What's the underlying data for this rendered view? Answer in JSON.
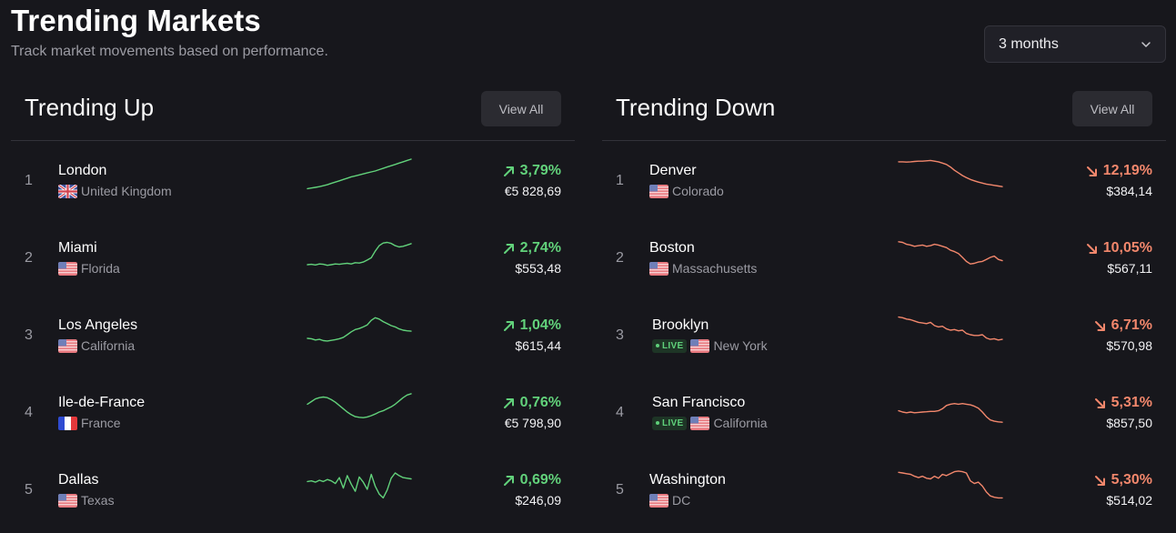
{
  "header": {
    "title": "Trending Markets",
    "subtitle": "Track market movements based on performance.",
    "period": "3 months"
  },
  "colors": {
    "positive": "#62d27b",
    "negative": "#f2876c"
  },
  "up": {
    "title": "Trending Up",
    "view_all": "View All",
    "rows": [
      {
        "rank": "1",
        "city": "London",
        "region": "United Kingdom",
        "flag": "gb-flag-icon",
        "live": false,
        "live_label": "",
        "change": "3,79%",
        "price": "€5 828,69",
        "spark": [
          10,
          12,
          14,
          16,
          19,
          22,
          26,
          30,
          34,
          38,
          42,
          46,
          49,
          52,
          55,
          58,
          61,
          64,
          68,
          72,
          76,
          80,
          84,
          88,
          92,
          96,
          100
        ]
      },
      {
        "rank": "2",
        "city": "Miami",
        "region": "Florida",
        "flag": "us-flag-icon",
        "live": false,
        "live_label": "",
        "change": "2,74%",
        "price": "$553,48",
        "spark": [
          14,
          15,
          13,
          16,
          15,
          12,
          14,
          16,
          15,
          17,
          18,
          16,
          20,
          19,
          22,
          28,
          35,
          55,
          72,
          80,
          82,
          79,
          72,
          68,
          70,
          74,
          78
        ]
      },
      {
        "rank": "3",
        "city": "Los Angeles",
        "region": "California",
        "flag": "us-flag-icon",
        "live": false,
        "live_label": "",
        "change": "1,04%",
        "price": "$615,44",
        "spark": [
          25,
          24,
          20,
          22,
          18,
          17,
          19,
          21,
          24,
          28,
          36,
          45,
          52,
          55,
          60,
          66,
          80,
          88,
          84,
          76,
          70,
          64,
          60,
          54,
          50,
          48,
          47
        ]
      },
      {
        "rank": "4",
        "city": "Ile-de-France",
        "region": "France",
        "flag": "fr-flag-icon",
        "live": false,
        "live_label": "",
        "change": "0,76%",
        "price": "€5 798,90",
        "spark": [
          60,
          68,
          76,
          80,
          82,
          80,
          74,
          66,
          56,
          46,
          36,
          28,
          22,
          20,
          19,
          21,
          25,
          30,
          36,
          40,
          46,
          52,
          60,
          70,
          80,
          88,
          92
        ]
      },
      {
        "rank": "5",
        "city": "Dallas",
        "region": "Texas",
        "flag": "us-flag-icon",
        "live": false,
        "live_label": "",
        "change": "0,69%",
        "price": "$246,09",
        "spark": [
          60,
          62,
          58,
          64,
          60,
          66,
          62,
          54,
          72,
          40,
          78,
          52,
          30,
          74,
          58,
          36,
          82,
          46,
          22,
          10,
          34,
          70,
          86,
          78,
          72,
          70,
          68
        ]
      }
    ]
  },
  "down": {
    "title": "Trending Down",
    "view_all": "View All",
    "rows": [
      {
        "rank": "1",
        "city": "Denver",
        "region": "Colorado",
        "flag": "us-flag-icon",
        "live": false,
        "live_label": "",
        "change": "12,19%",
        "price": "$384,14",
        "spark": [
          92,
          92,
          91,
          92,
          93,
          94,
          94,
          95,
          96,
          94,
          92,
          88,
          84,
          76,
          66,
          58,
          50,
          44,
          38,
          34,
          30,
          27,
          24,
          22,
          20,
          18,
          16
        ]
      },
      {
        "rank": "2",
        "city": "Boston",
        "region": "Massachusetts",
        "flag": "us-flag-icon",
        "live": false,
        "live_label": "",
        "change": "10,05%",
        "price": "$567,11",
        "spark": [
          84,
          82,
          76,
          74,
          70,
          72,
          74,
          70,
          72,
          76,
          74,
          70,
          66,
          58,
          54,
          48,
          36,
          24,
          16,
          18,
          22,
          24,
          30,
          36,
          40,
          30,
          26
        ]
      },
      {
        "rank": "3",
        "city": "Brooklyn",
        "region": "New York",
        "flag": "us-flag-icon",
        "live": true,
        "live_label": "LIVE",
        "change": "6,71%",
        "price": "$570,98",
        "spark": [
          90,
          88,
          84,
          82,
          78,
          74,
          72,
          70,
          74,
          64,
          60,
          62,
          54,
          50,
          52,
          48,
          50,
          40,
          36,
          34,
          34,
          36,
          26,
          22,
          24,
          20,
          22
        ]
      },
      {
        "rank": "4",
        "city": "San Francisco",
        "region": "California",
        "flag": "us-flag-icon",
        "live": true,
        "live_label": "LIVE",
        "change": "5,31%",
        "price": "$857,50",
        "spark": [
          40,
          36,
          34,
          36,
          34,
          35,
          36,
          37,
          38,
          38,
          40,
          46,
          56,
          60,
          62,
          60,
          62,
          60,
          58,
          54,
          48,
          36,
          22,
          12,
          8,
          6,
          5
        ]
      },
      {
        "rank": "5",
        "city": "Washington",
        "region": "DC",
        "flag": "us-flag-icon",
        "live": false,
        "live_label": "",
        "change": "5,30%",
        "price": "$514,02",
        "spark": [
          88,
          86,
          84,
          82,
          76,
          72,
          76,
          70,
          68,
          76,
          70,
          82,
          78,
          84,
          90,
          92,
          90,
          86,
          62,
          54,
          58,
          46,
          28,
          16,
          12,
          10,
          10
        ]
      }
    ]
  }
}
